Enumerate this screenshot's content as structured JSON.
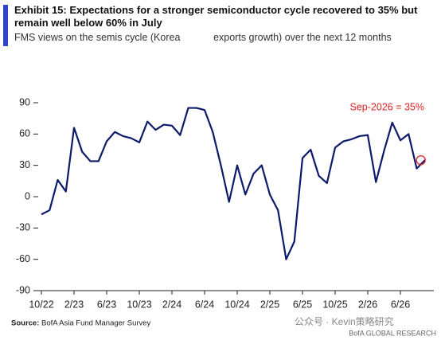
{
  "chart_data": {
    "type": "line",
    "title": "Exhibit 15: Expectations for a stronger semiconductor cycle recovered to 35% but remain well below 60% in July",
    "subtitle": "FMS views on the semis cycle (Korea            exports growth) over the next 12 months",
    "categories": [
      "10/22",
      null,
      null,
      null,
      "2/23",
      null,
      null,
      null,
      "6/23",
      null,
      null,
      null,
      "10/23",
      null,
      null,
      null,
      "2/24",
      null,
      null,
      null,
      "6/24",
      null,
      null,
      null,
      "10/24",
      null,
      null,
      null,
      "2/25",
      null,
      null,
      null,
      "6/25",
      null,
      null,
      null,
      "10/25",
      null,
      null,
      null,
      "2/26",
      null,
      null,
      null,
      "6/26",
      null,
      null,
      null
    ],
    "series": [
      {
        "name": "Semis cycle",
        "color": "#0d1a6b",
        "values": [
          -17,
          -13,
          16,
          5,
          66,
          43,
          34,
          34,
          53,
          62,
          58,
          56,
          52,
          72,
          64,
          69,
          68,
          59,
          85,
          85,
          83,
          62,
          30,
          -5,
          30,
          2,
          22,
          30,
          2,
          -13,
          -60,
          -43,
          37,
          45,
          20,
          13,
          47,
          53,
          55,
          58,
          59,
          14,
          44,
          71,
          54,
          60,
          27,
          35
        ]
      }
    ],
    "ylim": [
      -90,
      90
    ],
    "yticks": [
      90,
      60,
      30,
      0,
      -30,
      -60,
      -90
    ],
    "annotation": "Sep-2026 = 35%",
    "annotation_color": "#e02020",
    "source_label": "Source:",
    "source": "BofA Asia Fund Manager Survey",
    "watermark": "公众号 · Kevin策略研究",
    "footer": "BofA GLOBAL RESEARCH"
  }
}
